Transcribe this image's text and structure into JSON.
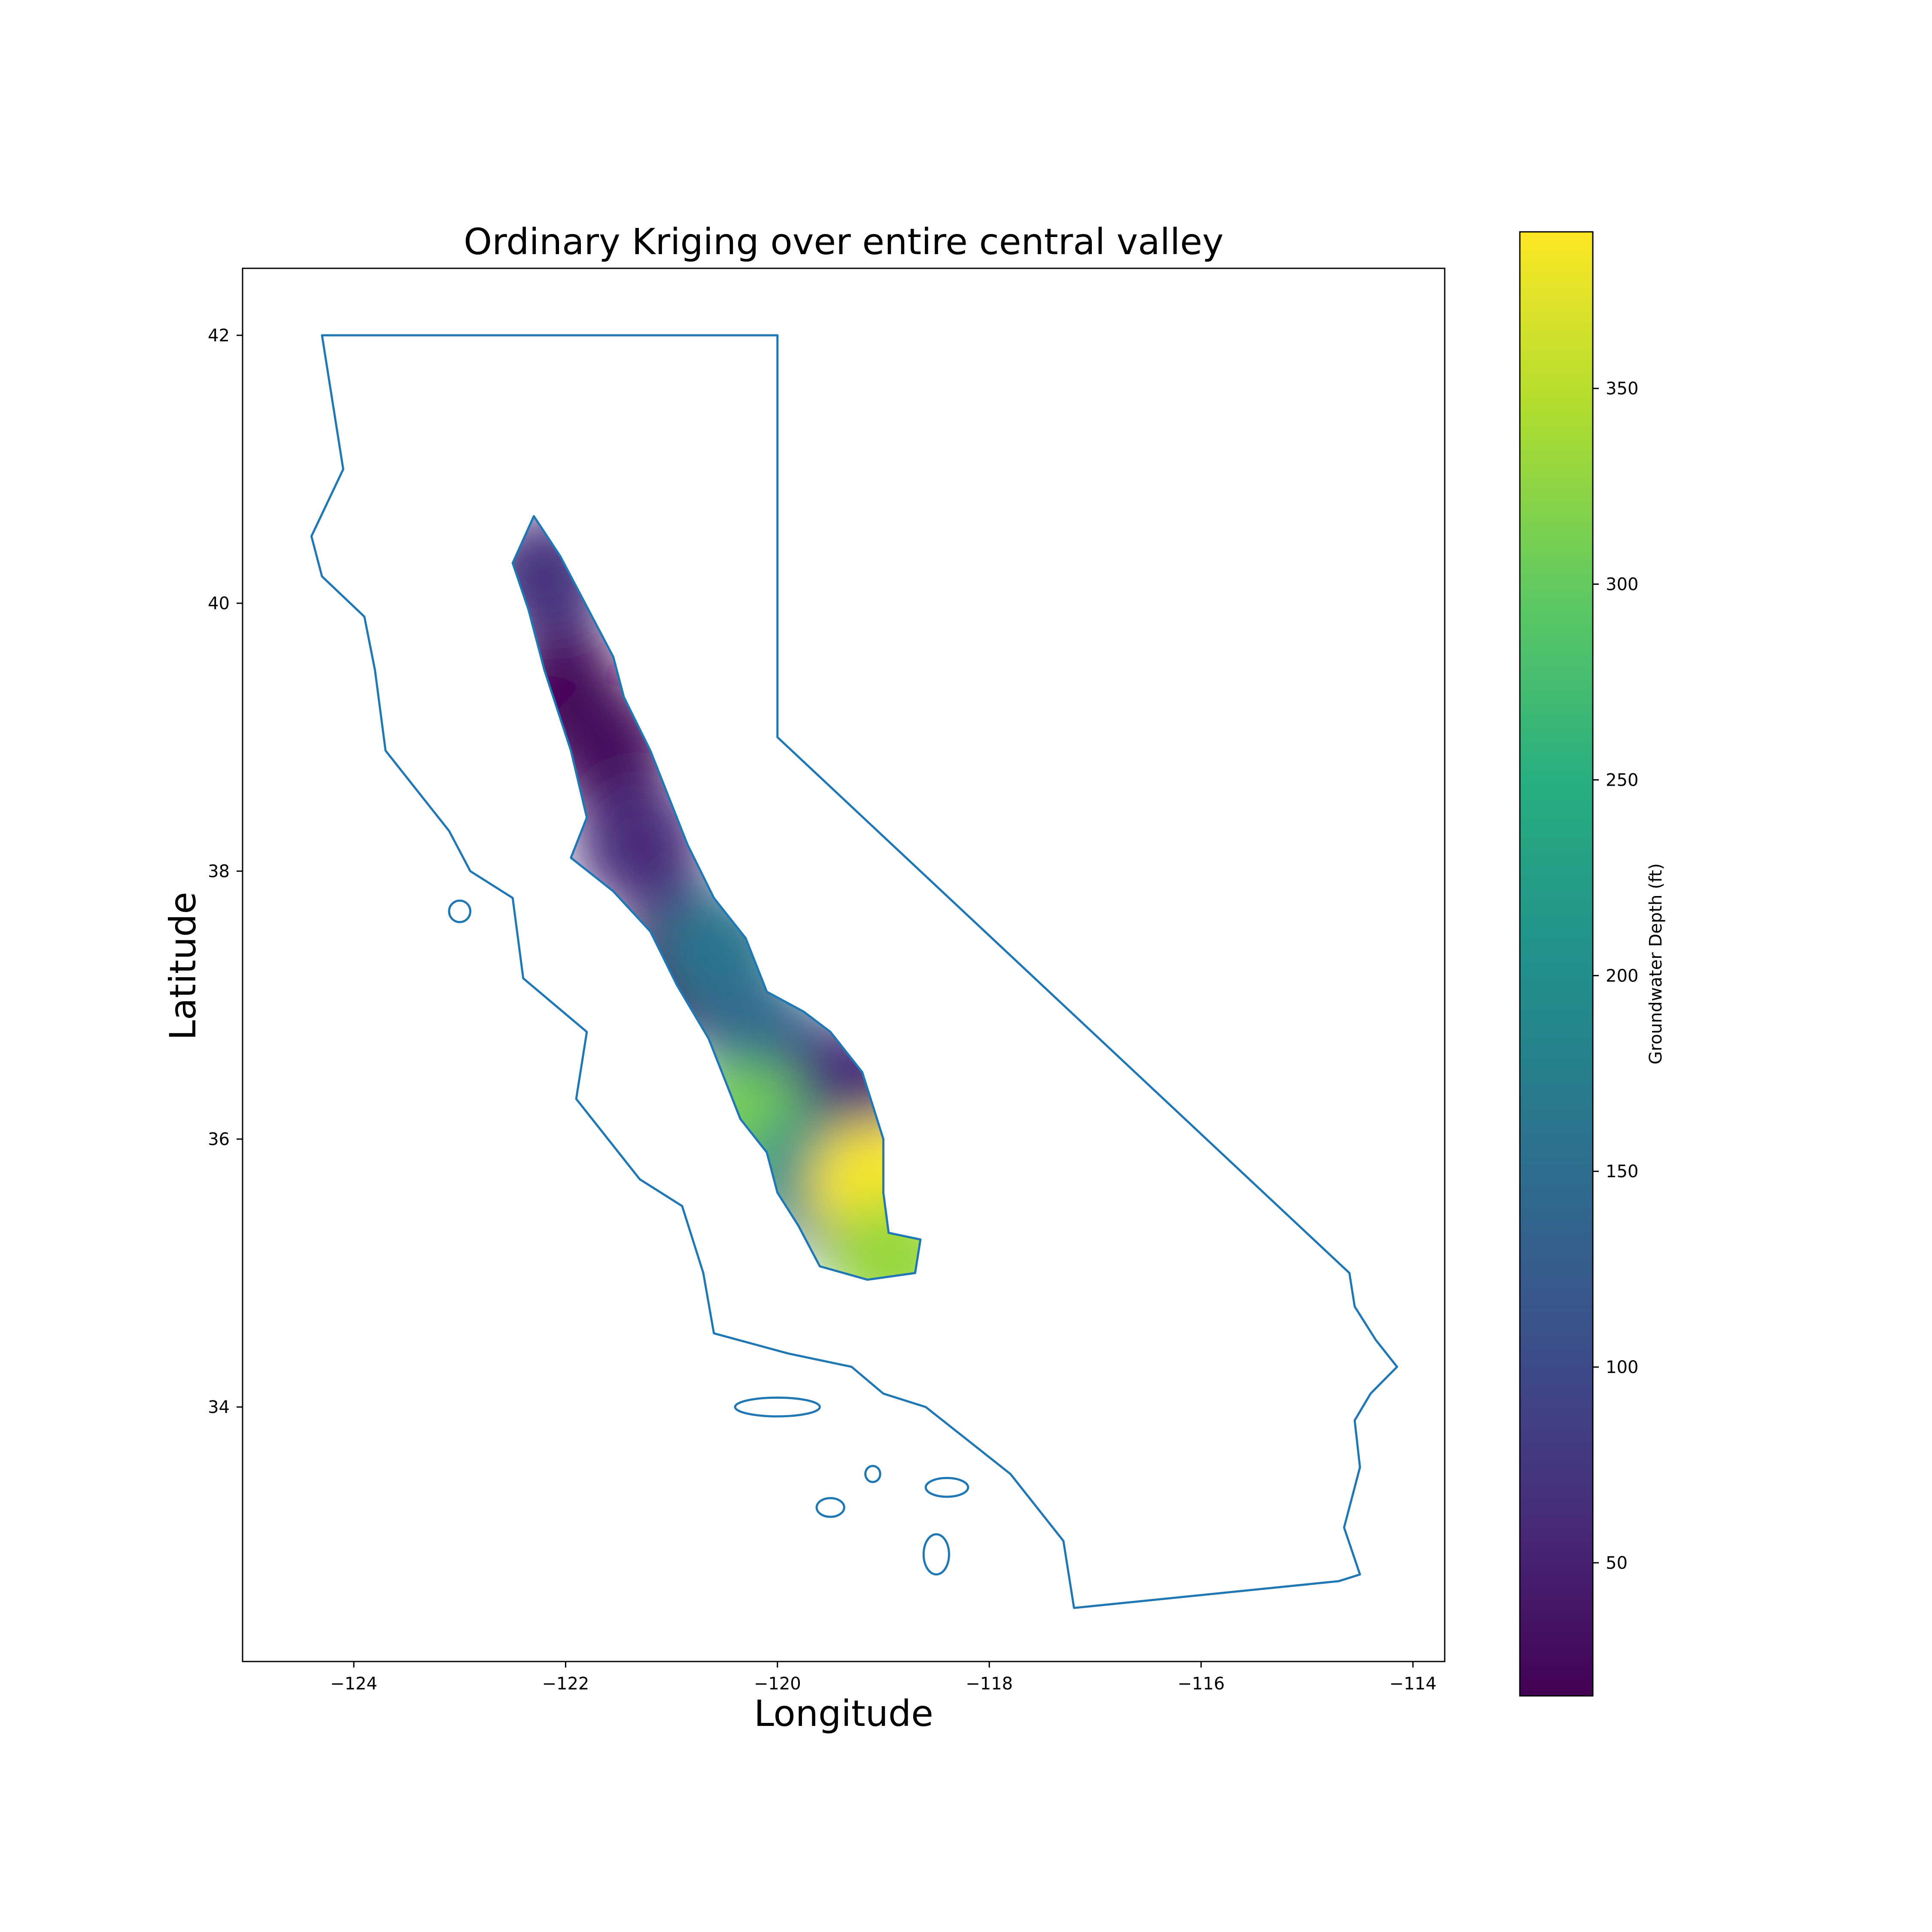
{
  "chart_data": {
    "type": "map",
    "title": "Ordinary Kriging over entire central valley",
    "xlabel": "Longitude",
    "ylabel": "Latitude",
    "xlim": [
      -125.05,
      -113.7
    ],
    "ylim": [
      32.1,
      42.5
    ],
    "xticks": [
      {
        "value": -124,
        "label": "−124"
      },
      {
        "value": -122,
        "label": "−122"
      },
      {
        "value": -120,
        "label": "−120"
      },
      {
        "value": -118,
        "label": "−118"
      },
      {
        "value": -116,
        "label": "−116"
      },
      {
        "value": -114,
        "label": "−114"
      }
    ],
    "yticks": [
      {
        "value": 34,
        "label": "34"
      },
      {
        "value": 36,
        "label": "36"
      },
      {
        "value": 38,
        "label": "38"
      },
      {
        "value": 40,
        "label": "40"
      },
      {
        "value": 42,
        "label": "42"
      }
    ],
    "boundary_color": "#1f77b4",
    "colormap": "viridis",
    "colorbar": {
      "label": "Groundwater Depth (ft)",
      "range": [
        16,
        390
      ],
      "ticks": [
        {
          "value": 50,
          "label": "50"
        },
        {
          "value": 100,
          "label": "100"
        },
        {
          "value": 150,
          "label": "150"
        },
        {
          "value": 200,
          "label": "200"
        },
        {
          "value": 250,
          "label": "250"
        },
        {
          "value": 300,
          "label": "300"
        },
        {
          "value": 350,
          "label": "350"
        }
      ]
    },
    "california_outline": [
      [
        -124.3,
        42.0
      ],
      [
        -120.0,
        42.0
      ],
      [
        -120.0,
        39.0
      ],
      [
        -114.6,
        35.0
      ],
      [
        -114.55,
        34.75
      ],
      [
        -114.35,
        34.5
      ],
      [
        -114.15,
        34.3
      ],
      [
        -114.4,
        34.1
      ],
      [
        -114.55,
        33.9
      ],
      [
        -114.5,
        33.55
      ],
      [
        -114.65,
        33.1
      ],
      [
        -114.5,
        32.75
      ],
      [
        -114.7,
        32.7
      ],
      [
        -117.2,
        32.5
      ],
      [
        -117.3,
        33.0
      ],
      [
        -117.8,
        33.5
      ],
      [
        -118.2,
        33.75
      ],
      [
        -118.6,
        34.0
      ],
      [
        -119.0,
        34.1
      ],
      [
        -119.3,
        34.3
      ],
      [
        -119.9,
        34.4
      ],
      [
        -120.6,
        34.55
      ],
      [
        -120.7,
        35.0
      ],
      [
        -120.9,
        35.5
      ],
      [
        -121.3,
        35.7
      ],
      [
        -121.9,
        36.3
      ],
      [
        -121.8,
        36.8
      ],
      [
        -122.4,
        37.2
      ],
      [
        -122.5,
        37.8
      ],
      [
        -122.9,
        38.0
      ],
      [
        -123.1,
        38.3
      ],
      [
        -123.7,
        38.9
      ],
      [
        -123.8,
        39.5
      ],
      [
        -123.9,
        39.9
      ],
      [
        -124.3,
        40.2
      ],
      [
        -124.4,
        40.5
      ],
      [
        -124.1,
        41.0
      ],
      [
        -124.2,
        41.5
      ],
      [
        -124.3,
        42.0
      ]
    ],
    "islands": [
      {
        "lon": -120.0,
        "lat": 34.0,
        "rx": 0.4,
        "ry": 0.07
      },
      {
        "lon": -119.1,
        "lat": 33.5,
        "rx": 0.07,
        "ry": 0.06
      },
      {
        "lon": -118.4,
        "lat": 33.4,
        "rx": 0.2,
        "ry": 0.07
      },
      {
        "lon": -118.5,
        "lat": 32.9,
        "rx": 0.12,
        "ry": 0.15
      },
      {
        "lon": -119.5,
        "lat": 33.25,
        "rx": 0.13,
        "ry": 0.07
      },
      {
        "lon": -123.0,
        "lat": 37.7,
        "rx": 0.1,
        "ry": 0.08
      }
    ],
    "central_valley_outline": [
      [
        -122.5,
        40.3
      ],
      [
        -122.3,
        40.65
      ],
      [
        -122.05,
        40.35
      ],
      [
        -121.55,
        39.6
      ],
      [
        -121.45,
        39.3
      ],
      [
        -121.2,
        38.9
      ],
      [
        -120.95,
        38.4
      ],
      [
        -120.85,
        38.2
      ],
      [
        -120.6,
        37.8
      ],
      [
        -120.3,
        37.5
      ],
      [
        -120.1,
        37.1
      ],
      [
        -119.75,
        36.95
      ],
      [
        -119.5,
        36.8
      ],
      [
        -119.2,
        36.5
      ],
      [
        -119.0,
        36.0
      ],
      [
        -119.0,
        35.6
      ],
      [
        -118.95,
        35.3
      ],
      [
        -118.65,
        35.25
      ],
      [
        -118.7,
        35.0
      ],
      [
        -119.15,
        34.95
      ],
      [
        -119.6,
        35.05
      ],
      [
        -119.8,
        35.35
      ],
      [
        -120.0,
        35.6
      ],
      [
        -120.1,
        35.9
      ],
      [
        -120.35,
        36.15
      ],
      [
        -120.65,
        36.75
      ],
      [
        -120.95,
        37.15
      ],
      [
        -121.2,
        37.55
      ],
      [
        -121.55,
        37.85
      ],
      [
        -121.95,
        38.1
      ],
      [
        -121.8,
        38.4
      ],
      [
        -121.95,
        38.9
      ],
      [
        -122.2,
        39.5
      ],
      [
        -122.35,
        39.95
      ],
      [
        -122.5,
        40.3
      ]
    ],
    "kriging_peaks": [
      {
        "lon": -122.0,
        "lat": 39.3,
        "value": 20
      },
      {
        "lon": -121.6,
        "lat": 38.9,
        "value": 25
      },
      {
        "lon": -121.3,
        "lat": 38.2,
        "value": 60
      },
      {
        "lon": -121.0,
        "lat": 37.2,
        "value": 30
      },
      {
        "lon": -120.55,
        "lat": 37.4,
        "value": 160
      },
      {
        "lon": -120.1,
        "lat": 36.7,
        "value": 140
      },
      {
        "lon": -119.3,
        "lat": 36.4,
        "value": 60
      },
      {
        "lon": -120.3,
        "lat": 36.1,
        "value": 310
      },
      {
        "lon": -119.7,
        "lat": 35.7,
        "value": 190
      },
      {
        "lon": -119.1,
        "lat": 35.65,
        "value": 390
      },
      {
        "lon": -118.9,
        "lat": 35.1,
        "value": 330
      },
      {
        "lon": -122.2,
        "lat": 40.2,
        "value": 70
      }
    ]
  }
}
